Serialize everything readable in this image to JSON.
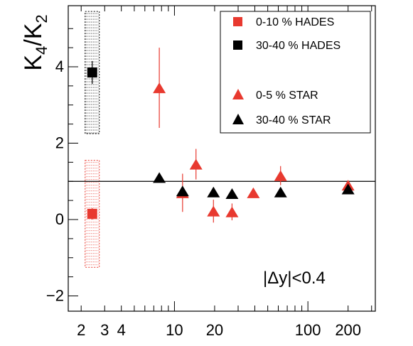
{
  "chart_data": {
    "type": "scatter",
    "title": "",
    "xlabel": "",
    "ylabel": "K4/K2",
    "ylabel_main": "K",
    "ylabel_sub1": "4",
    "ylabel_slash": "/",
    "ylabel_main2": "K",
    "ylabel_sub2": "2",
    "x_scale": "log",
    "xlim": [
      1.6,
      320
    ],
    "ylim": [
      -2.4,
      5.6
    ],
    "x_ticks": [
      {
        "value": 2,
        "label": "2"
      },
      {
        "value": 3,
        "label": "3"
      },
      {
        "value": 4,
        "label": "4"
      },
      {
        "value": 10,
        "label": "10"
      },
      {
        "value": 20,
        "label": "20"
      },
      {
        "value": 100,
        "label": "100"
      },
      {
        "value": 200,
        "label": "200"
      }
    ],
    "y_ticks": [
      {
        "value": 4,
        "label": "4"
      },
      {
        "value": 2,
        "label": "2"
      },
      {
        "value": 0,
        "label": "0"
      },
      {
        "value": -2,
        "label": "−2"
      }
    ],
    "reference_line": 1.0,
    "annotation": "|Δy|<0.4",
    "legend_position": "top-right",
    "grid": false,
    "series": [
      {
        "name": "0-10 % HADES",
        "marker": "square",
        "color": "#e8392f",
        "points": [
          {
            "x": 2.42,
            "y": 0.15,
            "yerr": 0.15,
            "sys": 1.4
          }
        ]
      },
      {
        "name": "30-40 % HADES",
        "marker": "square",
        "color": "#000000",
        "points": [
          {
            "x": 2.42,
            "y": 3.85,
            "yerr": 0.3,
            "sys": 1.6
          }
        ]
      },
      {
        "name": "0-5 % STAR",
        "marker": "triangle",
        "color": "#e8392f",
        "points": [
          {
            "x": 7.7,
            "y": 3.45,
            "yerr": 1.05
          },
          {
            "x": 11.5,
            "y": 0.7,
            "yerr": 0.5
          },
          {
            "x": 14.5,
            "y": 1.45,
            "yerr": 0.4
          },
          {
            "x": 19.6,
            "y": 0.22,
            "yerr": 0.3
          },
          {
            "x": 27,
            "y": 0.2,
            "yerr": 0.22
          },
          {
            "x": 39,
            "y": 0.7,
            "yerr": 0.12
          },
          {
            "x": 62.4,
            "y": 1.15,
            "yerr": 0.25
          },
          {
            "x": 200,
            "y": 0.9,
            "yerr": 0.08
          }
        ]
      },
      {
        "name": "30-40 % STAR",
        "marker": "triangle",
        "color": "#000000",
        "points": [
          {
            "x": 7.7,
            "y": 1.1,
            "yerr": 0.12
          },
          {
            "x": 11.5,
            "y": 0.75,
            "yerr": 0.1
          },
          {
            "x": 19.6,
            "y": 0.72,
            "yerr": 0.08
          },
          {
            "x": 27,
            "y": 0.68,
            "yerr": 0.07
          },
          {
            "x": 62.4,
            "y": 0.72,
            "yerr": 0.06
          },
          {
            "x": 200,
            "y": 0.8,
            "yerr": 0.05
          }
        ]
      }
    ]
  },
  "colors": {
    "red": "#e8392f",
    "black": "#000000",
    "axis": "#000000"
  }
}
